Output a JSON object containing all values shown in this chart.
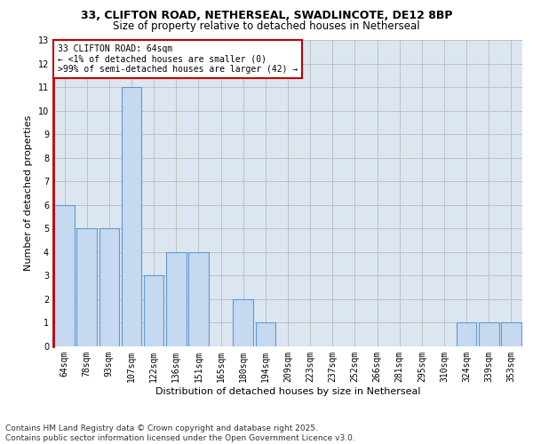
{
  "title1": "33, CLIFTON ROAD, NETHERSEAL, SWADLINCOTE, DE12 8BP",
  "title2": "Size of property relative to detached houses in Netherseal",
  "xlabel": "Distribution of detached houses by size in Netherseal",
  "ylabel": "Number of detached properties",
  "categories": [
    "64sqm",
    "78sqm",
    "93sqm",
    "107sqm",
    "122sqm",
    "136sqm",
    "151sqm",
    "165sqm",
    "180sqm",
    "194sqm",
    "209sqm",
    "223sqm",
    "237sqm",
    "252sqm",
    "266sqm",
    "281sqm",
    "295sqm",
    "310sqm",
    "324sqm",
    "339sqm",
    "353sqm"
  ],
  "values": [
    6,
    5,
    5,
    11,
    3,
    4,
    4,
    0,
    2,
    1,
    0,
    0,
    0,
    0,
    0,
    0,
    0,
    0,
    1,
    1,
    1
  ],
  "bar_color": "#c6d9f0",
  "bar_edge_color": "#5a9bd5",
  "highlight_color": "#c00000",
  "annotation_text": "33 CLIFTON ROAD: 64sqm\n← <1% of detached houses are smaller (0)\n>99% of semi-detached houses are larger (42) →",
  "annotation_box_color": "#ffffff",
  "annotation_box_edge": "#c00000",
  "ylim": [
    0,
    13
  ],
  "yticks": [
    0,
    1,
    2,
    3,
    4,
    5,
    6,
    7,
    8,
    9,
    10,
    11,
    12,
    13
  ],
  "grid_color": "#c0c0c0",
  "bg_color": "#dce6f1",
  "footer1": "Contains HM Land Registry data © Crown copyright and database right 2025.",
  "footer2": "Contains public sector information licensed under the Open Government Licence v3.0.",
  "title1_fontsize": 9,
  "title2_fontsize": 8.5,
  "xlabel_fontsize": 8,
  "ylabel_fontsize": 8,
  "tick_fontsize": 7,
  "annotation_fontsize": 7,
  "footer_fontsize": 6.5
}
